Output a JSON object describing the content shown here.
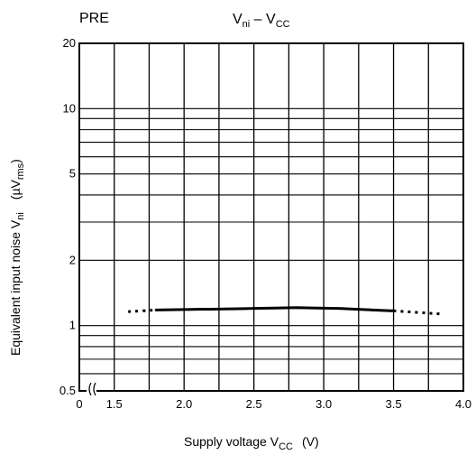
{
  "chart_data": {
    "type": "line",
    "panel_label": "PRE",
    "title": {
      "main": "V",
      "sub": "ni",
      "mid": " – V",
      "sub2": "CC"
    },
    "xlabel": {
      "text": "Supply voltage  V",
      "sub": "CC",
      "unit": "(V)"
    },
    "ylabel": {
      "text": "Equivalent input noise  V",
      "sub": "ni",
      "unit_open": "(µV",
      "unit_sub": "rms",
      "unit_close": ")"
    },
    "xlim": [
      1.25,
      4.0
    ],
    "ylim": [
      0.5,
      20
    ],
    "yscale": "log",
    "x_tick_labels": [
      {
        "x": 1.5,
        "label": "1.5"
      },
      {
        "x": 2.0,
        "label": "2.0"
      },
      {
        "x": 2.5,
        "label": "2.5"
      },
      {
        "x": 3.0,
        "label": "3.0"
      },
      {
        "x": 3.5,
        "label": "3.5"
      },
      {
        "x": 4.0,
        "label": "4.0"
      }
    ],
    "x_origin_label": "0",
    "x_axis_break": true,
    "y_tick_labels": [
      {
        "y": 0.5,
        "label": "0.5"
      },
      {
        "y": 1,
        "label": "1"
      },
      {
        "y": 2,
        "label": "2"
      },
      {
        "y": 5,
        "label": "5"
      },
      {
        "y": 10,
        "label": "10"
      },
      {
        "y": 20,
        "label": "20"
      }
    ],
    "x_gridlines": [
      1.25,
      1.5,
      1.75,
      2.0,
      2.25,
      2.5,
      2.75,
      3.0,
      3.25,
      3.5,
      3.75,
      4.0
    ],
    "y_gridlines": [
      0.5,
      0.6,
      0.7,
      0.8,
      0.9,
      1,
      2,
      3,
      4,
      5,
      6,
      7,
      8,
      9,
      10,
      20
    ],
    "grid": true,
    "series": [
      {
        "style": "solid",
        "points": [
          [
            1.8,
            1.18
          ],
          [
            2.2,
            1.19
          ],
          [
            2.5,
            1.2
          ],
          [
            2.8,
            1.21
          ],
          [
            3.1,
            1.2
          ],
          [
            3.5,
            1.17
          ]
        ]
      },
      {
        "style": "dotted",
        "points": [
          [
            1.6,
            1.16
          ],
          [
            1.8,
            1.18
          ]
        ]
      },
      {
        "style": "dotted",
        "points": [
          [
            3.5,
            1.17
          ],
          [
            3.85,
            1.13
          ]
        ]
      }
    ]
  }
}
